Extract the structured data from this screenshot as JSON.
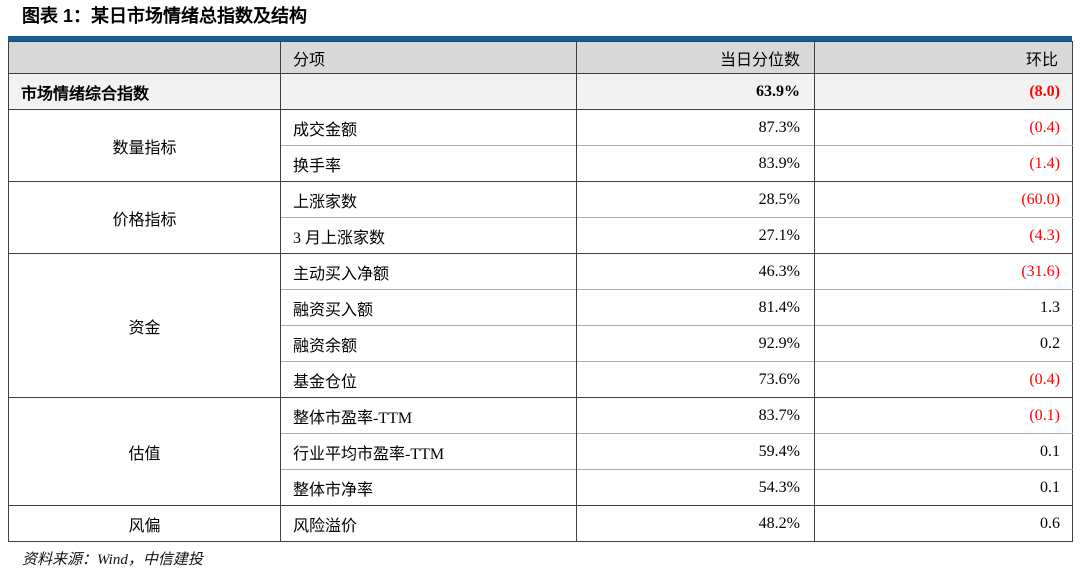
{
  "title": "图表 1：某日市场情绪总指数及结构",
  "table": {
    "headers": {
      "category": "",
      "subitem": "分项",
      "percentile": "当日分位数",
      "change": "环比"
    },
    "summary_row": {
      "label": "市场情绪综合指数",
      "subitem": "",
      "percentile": "63.9%",
      "change": "(8.0)",
      "negative": true
    },
    "sections": [
      {
        "category": "数量指标",
        "rows": [
          {
            "subitem": "成交金额",
            "percentile": "87.3%",
            "change": "(0.4)",
            "negative": true
          },
          {
            "subitem": "换手率",
            "percentile": "83.9%",
            "change": "(1.4)",
            "negative": true
          }
        ]
      },
      {
        "category": "价格指标",
        "rows": [
          {
            "subitem": "上涨家数",
            "percentile": "28.5%",
            "change": "(60.0)",
            "negative": true
          },
          {
            "subitem": "3 月上涨家数",
            "percentile": "27.1%",
            "change": "(4.3)",
            "negative": true
          }
        ]
      },
      {
        "category": "资金",
        "rows": [
          {
            "subitem": "主动买入净额",
            "percentile": "46.3%",
            "change": "(31.6)",
            "negative": true
          },
          {
            "subitem": "融资买入额",
            "percentile": "81.4%",
            "change": "1.3",
            "negative": false
          },
          {
            "subitem": "融资余额",
            "percentile": "92.9%",
            "change": "0.2",
            "negative": false
          },
          {
            "subitem": "基金仓位",
            "percentile": "73.6%",
            "change": "(0.4)",
            "negative": true
          }
        ]
      },
      {
        "category": "估值",
        "rows": [
          {
            "subitem": "整体市盈率-TTM",
            "percentile": "83.7%",
            "change": "(0.1)",
            "negative": true
          },
          {
            "subitem": "行业平均市盈率-TTM",
            "percentile": "59.4%",
            "change": "0.1",
            "negative": false
          },
          {
            "subitem": "整体市净率",
            "percentile": "54.3%",
            "change": "0.1",
            "negative": false
          }
        ]
      },
      {
        "category": "风偏",
        "rows": [
          {
            "subitem": "风险溢价",
            "percentile": "48.2%",
            "change": "0.6",
            "negative": false
          }
        ]
      }
    ]
  },
  "footer": {
    "source": "资料来源：Wind，中信建投"
  },
  "colors": {
    "accent_bar": "#1c5b8d",
    "negative_value": "#ff0000",
    "header_bg": "#d9d9d9",
    "summary_row_bg": "#f2f2f2"
  }
}
